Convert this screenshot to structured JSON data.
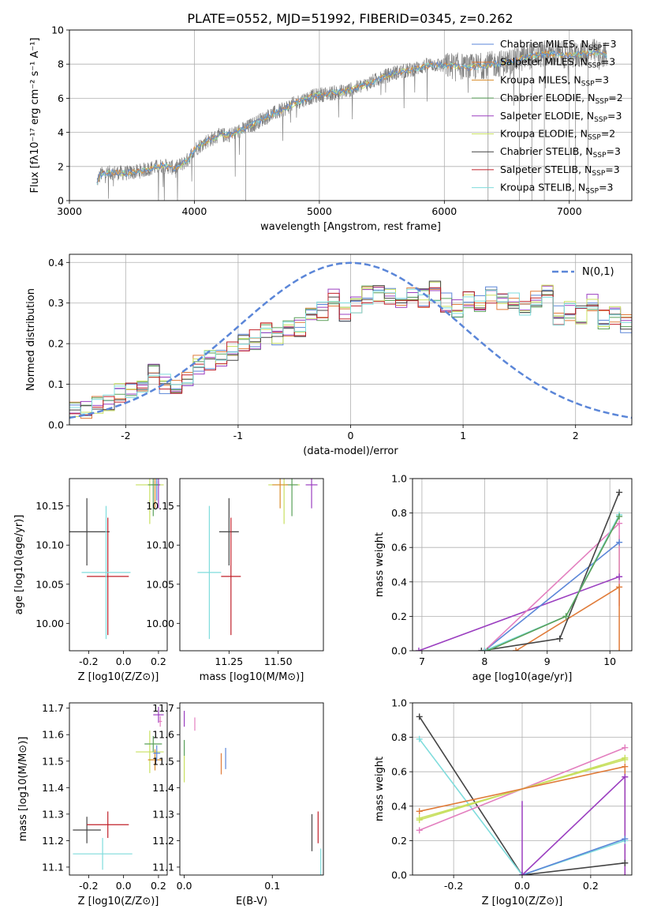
{
  "figure_title": "PLATE=0552, MJD=51992, FIBERID=0345, z=0.262",
  "colors": {
    "chabrier_miles": "#5b86d8",
    "salpeter_miles": "#e07b39",
    "kroupa_miles": "#d98c2a",
    "chabrier_elodie": "#5aa05a",
    "salpeter_elodie": "#9b3fc0",
    "kroupa_elodie": "#c8e060",
    "chabrier_stelib": "#444444",
    "salpeter_stelib": "#c0202a",
    "kroupa_stelib": "#7fdcdc",
    "data_gray": "#808080",
    "pink": "#e37fbf",
    "normal_curve": "#5b86d8"
  },
  "chart_data": [
    {
      "id": "spectrum",
      "type": "line",
      "xlabel": "wavelength [Angstrom, rest frame]",
      "ylabel": "Flux [fλ10⁻¹⁷ erg cm⁻² s⁻¹ A⁻¹]",
      "xlim": [
        3000,
        7500
      ],
      "ylim": [
        0,
        10
      ],
      "xticks": [
        3000,
        4000,
        5000,
        6000,
        7000
      ],
      "yticks": [
        0,
        2,
        4,
        6,
        8,
        10
      ],
      "grid": true,
      "legend_position": "right",
      "legend": [
        "Chabrier MILES, N_SSP=3",
        "Salpeter MILES, N_SSP=3",
        "Kroupa MILES, N_SSP=3",
        "Chabrier ELODIE, N_SSP=2",
        "Salpeter ELODIE, N_SSP=3",
        "Kroupa ELODIE, N_SSP=2",
        "Chabrier STELIB, N_SSP=3",
        "Salpeter STELIB, N_SSP=3",
        "Kroupa STELIB, N_SSP=3"
      ],
      "continuum_nodes": [
        [
          3220,
          1.1
        ],
        [
          3250,
          1.55
        ],
        [
          3350,
          1.65
        ],
        [
          3450,
          1.6
        ],
        [
          3550,
          1.7
        ],
        [
          3650,
          1.9
        ],
        [
          3750,
          2.05
        ],
        [
          3850,
          1.9
        ],
        [
          3950,
          2.4
        ],
        [
          4000,
          3.0
        ],
        [
          4100,
          3.5
        ],
        [
          4200,
          3.8
        ],
        [
          4300,
          3.9
        ],
        [
          4400,
          4.2
        ],
        [
          4500,
          4.6
        ],
        [
          4600,
          5.0
        ],
        [
          4700,
          5.3
        ],
        [
          4800,
          5.7
        ],
        [
          4900,
          6.0
        ],
        [
          5000,
          6.2
        ],
        [
          5100,
          6.3
        ],
        [
          5200,
          6.4
        ],
        [
          5300,
          6.6
        ],
        [
          5400,
          6.9
        ],
        [
          5500,
          7.2
        ],
        [
          5600,
          7.5
        ],
        [
          5700,
          7.6
        ],
        [
          5800,
          7.8
        ],
        [
          5900,
          8.0
        ],
        [
          6000,
          7.9
        ],
        [
          6100,
          7.9
        ],
        [
          6200,
          7.8
        ],
        [
          6300,
          7.9
        ],
        [
          6400,
          8.0
        ],
        [
          6500,
          8.1
        ],
        [
          6600,
          8.3
        ],
        [
          6700,
          8.5
        ],
        [
          6800,
          8.6
        ],
        [
          6900,
          8.6
        ],
        [
          7000,
          8.5
        ],
        [
          7100,
          8.6
        ],
        [
          7200,
          8.7
        ],
        [
          7300,
          8.5
        ]
      ]
    },
    {
      "id": "residuals",
      "type": "step",
      "xlabel": "(data-model)/error",
      "ylabel": "Normed distribution",
      "xlim": [
        -2.5,
        2.5
      ],
      "ylim": [
        0,
        0.42
      ],
      "xticks": [
        -2,
        -1,
        0,
        1,
        2
      ],
      "yticks": [
        0.0,
        0.1,
        0.2,
        0.3,
        0.4
      ],
      "grid": true,
      "legend_position": "top-right",
      "legend": [
        "N(0,1)"
      ],
      "bin_width": 0.1,
      "bin_start": -2.5,
      "base_hist": [
        0.04,
        0.04,
        0.05,
        0.06,
        0.08,
        0.08,
        0.09,
        0.13,
        0.1,
        0.1,
        0.12,
        0.15,
        0.16,
        0.16,
        0.18,
        0.2,
        0.21,
        0.24,
        0.22,
        0.24,
        0.24,
        0.27,
        0.28,
        0.31,
        0.28,
        0.29,
        0.32,
        0.32,
        0.32,
        0.3,
        0.33,
        0.31,
        0.33,
        0.3,
        0.29,
        0.31,
        0.3,
        0.32,
        0.3,
        0.3,
        0.29,
        0.31,
        0.32,
        0.27,
        0.28,
        0.27,
        0.3,
        0.26,
        0.27,
        0.25,
        0.24,
        0.21,
        0.21,
        0.2,
        0.18,
        0.18,
        0.16,
        0.14,
        0.15,
        0.14,
        0.15,
        0.14,
        0.12,
        0.12,
        0.1,
        0.1,
        0.1,
        0.09,
        0.07,
        0.07
      ]
    },
    {
      "id": "age_vs_Z",
      "type": "errorbar",
      "xlabel": "Z [log10(Z/Z⊙)]",
      "ylabel": "age  [log10(age/yr)]",
      "xlim": [
        -0.31,
        0.25
      ],
      "ylim": [
        9.965,
        10.185
      ],
      "xticks": [
        -0.2,
        0.0,
        0.2
      ],
      "yticks": [
        10.0,
        10.05,
        10.1,
        10.15
      ],
      "points": [
        {
          "series": "Chabrier STELIB",
          "color": "chabrier_stelib",
          "x": -0.21,
          "xerr": 0.13,
          "y": 10.117,
          "yerr": 0.043
        },
        {
          "series": "Salpeter STELIB",
          "color": "salpeter_stelib",
          "x": -0.09,
          "xerr": 0.12,
          "y": 10.06,
          "yerr": 0.075
        },
        {
          "series": "Kroupa STELIB",
          "color": "kroupa_stelib",
          "x": -0.1,
          "xerr": 0.14,
          "y": 10.065,
          "yerr": 0.085
        },
        {
          "series": "Kroupa ELODIE",
          "color": "kroupa_elodie",
          "x": 0.15,
          "xerr": 0.08,
          "y": 10.177,
          "yerr": 0.05
        },
        {
          "series": "Salpeter ELODIE",
          "color": "salpeter_elodie",
          "x": 0.2,
          "xerr": 0.01,
          "y": 10.177,
          "yerr": 0.03
        },
        {
          "series": "Kroupa MILES",
          "color": "kroupa_miles",
          "x": 0.18,
          "xerr": 0.02,
          "y": 10.177,
          "yerr": 0.03
        },
        {
          "series": "Chabrier MILES",
          "color": "chabrier_miles",
          "x": 0.19,
          "xerr": 0.01,
          "y": 10.177,
          "yerr": 0.02
        },
        {
          "series": "Chabrier ELODIE",
          "color": "chabrier_elodie",
          "x": 0.17,
          "xerr": 0.03,
          "y": 10.177,
          "yerr": 0.04
        }
      ]
    },
    {
      "id": "age_vs_mass",
      "type": "errorbar",
      "xlabel": "mass [log10(M/M⊙)]",
      "ylabel": "",
      "xlim": [
        11.0,
        11.73
      ],
      "ylim": [
        9.965,
        10.185
      ],
      "xticks": [
        11.25,
        11.5
      ],
      "yticks": [
        10.0,
        10.05,
        10.1,
        10.15
      ],
      "points": [
        {
          "series": "Chabrier STELIB",
          "color": "chabrier_stelib",
          "x": 11.25,
          "xerr": 0.05,
          "y": 10.117,
          "yerr": 0.043
        },
        {
          "series": "Salpeter STELIB",
          "color": "salpeter_stelib",
          "x": 11.26,
          "xerr": 0.05,
          "y": 10.06,
          "yerr": 0.075
        },
        {
          "series": "Kroupa STELIB",
          "color": "kroupa_stelib",
          "x": 11.15,
          "xerr": 0.06,
          "y": 10.065,
          "yerr": 0.085
        },
        {
          "series": "Kroupa ELODIE",
          "color": "kroupa_elodie",
          "x": 11.53,
          "xerr": 0.08,
          "y": 10.177,
          "yerr": 0.05
        },
        {
          "series": "Chabrier ELODIE",
          "color": "chabrier_elodie",
          "x": 11.57,
          "xerr": 0.03,
          "y": 10.177,
          "yerr": 0.04
        },
        {
          "series": "Salpeter ELODIE",
          "color": "salpeter_elodie",
          "x": 11.67,
          "xerr": 0.03,
          "y": 10.177,
          "yerr": 0.03
        },
        {
          "series": "Kroupa MILES",
          "color": "kroupa_miles",
          "x": 11.51,
          "xerr": 0.04,
          "y": 10.177,
          "yerr": 0.03
        }
      ]
    },
    {
      "id": "weight_vs_age",
      "type": "line",
      "xlabel": "age  [log10(age/yr)]",
      "ylabel": "mass weight",
      "xlim": [
        6.85,
        10.35
      ],
      "ylim": [
        0,
        1.0
      ],
      "xticks": [
        7,
        8,
        9,
        10
      ],
      "yticks": [
        0.0,
        0.2,
        0.4,
        0.6,
        0.8,
        1.0
      ],
      "grid": true,
      "series": [
        {
          "name": "Salpeter ELODIE",
          "color": "salpeter_elodie",
          "x": [
            6.95,
            10.15
          ],
          "y": [
            0.0,
            0.43
          ]
        },
        {
          "name": "Chabrier MILES",
          "color": "chabrier_miles",
          "x": [
            8.0,
            10.15
          ],
          "y": [
            0.0,
            0.63
          ]
        },
        {
          "name": "Salpeter MILES",
          "color": "salpeter_miles",
          "x": [
            8.5,
            10.15
          ],
          "y": [
            0.0,
            0.37
          ]
        },
        {
          "name": "Pink",
          "color": "pink",
          "x": [
            8.0,
            10.15
          ],
          "y": [
            0.0,
            0.74
          ]
        },
        {
          "name": "Chabrier STELIB",
          "color": "chabrier_stelib",
          "x": [
            7.95,
            9.2,
            10.15
          ],
          "y": [
            0.0,
            0.07,
            0.92
          ]
        },
        {
          "name": "Kroupa STELIB",
          "color": "kroupa_stelib",
          "x": [
            8.0,
            9.3,
            10.15
          ],
          "y": [
            0.0,
            0.2,
            0.79
          ]
        },
        {
          "name": "Chabrier ELODIE",
          "color": "chabrier_elodie",
          "x": [
            8.05,
            9.3,
            10.15
          ],
          "y": [
            0.0,
            0.2,
            0.78
          ]
        }
      ],
      "vbars": [
        {
          "color": "kroupa_elodie",
          "x": 10.15,
          "y0": 0.33,
          "y1": 0.67
        },
        {
          "color": "pink",
          "x": 10.15,
          "y0": 0.26,
          "y1": 0.74
        },
        {
          "color": "salpeter_miles",
          "x": 10.15,
          "y0": 0.0,
          "y1": 0.37
        }
      ]
    },
    {
      "id": "mass_vs_Z",
      "type": "errorbar",
      "xlabel": "Z [log10(Z/Z⊙)]",
      "ylabel": "mass [log10(M/M⊙)]",
      "xlim": [
        -0.31,
        0.25
      ],
      "ylim": [
        11.07,
        11.72
      ],
      "xticks": [
        -0.2,
        0.0,
        0.2
      ],
      "yticks": [
        11.1,
        11.2,
        11.3,
        11.4,
        11.5,
        11.6,
        11.7
      ],
      "points": [
        {
          "series": "Chabrier STELIB",
          "color": "chabrier_stelib",
          "x": -0.21,
          "xerr": 0.08,
          "y": 11.24,
          "yerr": 0.05
        },
        {
          "series": "Salpeter STELIB",
          "color": "salpeter_stelib",
          "x": -0.09,
          "xerr": 0.12,
          "y": 11.26,
          "yerr": 0.05
        },
        {
          "series": "Kroupa STELIB",
          "color": "kroupa_stelib",
          "x": -0.12,
          "xerr": 0.17,
          "y": 11.15,
          "yerr": 0.06
        },
        {
          "series": "Kroupa ELODIE",
          "color": "kroupa_elodie",
          "x": 0.15,
          "xerr": 0.08,
          "y": 11.535,
          "yerr": 0.08
        },
        {
          "series": "Chabrier ELODIE",
          "color": "chabrier_elodie",
          "x": 0.17,
          "xerr": 0.05,
          "y": 11.565,
          "yerr": 0.03
        },
        {
          "series": "Kroupa MILES",
          "color": "kroupa_miles",
          "x": 0.18,
          "xerr": 0.04,
          "y": 11.505,
          "yerr": 0.04
        },
        {
          "series": "Chabrier MILES",
          "color": "chabrier_miles",
          "x": 0.19,
          "xerr": 0.02,
          "y": 11.53,
          "yerr": 0.03
        },
        {
          "series": "Salpeter ELODIE",
          "color": "salpeter_elodie",
          "x": 0.2,
          "xerr": 0.03,
          "y": 11.675,
          "yerr": 0.03
        },
        {
          "series": "Pink",
          "color": "pink",
          "x": 0.21,
          "xerr": 0.01,
          "y": 11.65,
          "yerr": 0.02
        }
      ]
    },
    {
      "id": "mass_vs_ebv",
      "type": "errorbar",
      "xlabel": "E(B-V)",
      "ylabel": "",
      "xlim": [
        -0.005,
        0.158
      ],
      "ylim": [
        11.07,
        11.72
      ],
      "xticks": [
        0.0,
        0.1
      ],
      "yticks": [
        11.1,
        11.2,
        11.3,
        11.4,
        11.5,
        11.6,
        11.7
      ],
      "points": [
        {
          "series": "Salpeter ELODIE",
          "color": "salpeter_elodie",
          "x": 0.0,
          "xerr": 0,
          "y": 11.66,
          "yerr": 0.03
        },
        {
          "series": "Chabrier ELODIE",
          "color": "chabrier_elodie",
          "x": 0.0,
          "xerr": 0,
          "y": 11.55,
          "yerr": 0.03
        },
        {
          "series": "Kroupa ELODIE",
          "color": "kroupa_elodie",
          "x": 0.0,
          "xerr": 0,
          "y": 11.47,
          "yerr": 0.05
        },
        {
          "series": "Pink",
          "color": "pink",
          "x": 0.012,
          "xerr": 0,
          "y": 11.64,
          "yerr": 0.025
        },
        {
          "series": "Salpeter MILES",
          "color": "salpeter_miles",
          "x": 0.042,
          "xerr": 0,
          "y": 11.49,
          "yerr": 0.04
        },
        {
          "series": "Chabrier MILES",
          "color": "chabrier_miles",
          "x": 0.047,
          "xerr": 0,
          "y": 11.51,
          "yerr": 0.04
        },
        {
          "series": "Chabrier STELIB",
          "color": "chabrier_stelib",
          "x": 0.145,
          "xerr": 0,
          "y": 11.23,
          "yerr": 0.07
        },
        {
          "series": "Salpeter STELIB",
          "color": "salpeter_stelib",
          "x": 0.152,
          "xerr": 0,
          "y": 11.25,
          "yerr": 0.06
        },
        {
          "series": "Kroupa STELIB",
          "color": "kroupa_stelib",
          "x": 0.155,
          "xerr": 0,
          "y": 11.12,
          "yerr": 0.05
        }
      ]
    },
    {
      "id": "weight_vs_Z",
      "type": "line",
      "xlabel": "Z [log10(Z/Z⊙)]",
      "ylabel": "mass weight",
      "xlim": [
        -0.32,
        0.32
      ],
      "ylim": [
        0,
        1.0
      ],
      "xticks": [
        -0.2,
        0.0,
        0.2
      ],
      "yticks": [
        0.0,
        0.2,
        0.4,
        0.6,
        0.8,
        1.0
      ],
      "grid": true,
      "series": [
        {
          "name": "Chabrier STELIB",
          "color": "chabrier_stelib",
          "x": [
            -0.3,
            0.0,
            0.3
          ],
          "y": [
            0.92,
            0.0,
            0.07
          ]
        },
        {
          "name": "Kroupa STELIB",
          "color": "kroupa_stelib",
          "x": [
            -0.3,
            0.0,
            0.3
          ],
          "y": [
            0.79,
            0.0,
            0.2
          ]
        },
        {
          "name": "Chabrier MILES",
          "color": "chabrier_miles",
          "x": [
            0.0,
            0.3
          ],
          "y": [
            0.0,
            0.21
          ]
        },
        {
          "name": "Pink",
          "color": "pink",
          "x": [
            -0.3,
            0.3
          ],
          "y": [
            0.26,
            0.74
          ]
        },
        {
          "name": "Kroupa ELODIE",
          "color": "kroupa_elodie",
          "x": [
            -0.3,
            0.3
          ],
          "y": [
            0.33,
            0.67
          ]
        },
        {
          "name": "Kroupa ELODIE 2",
          "color": "kroupa_elodie",
          "x": [
            -0.3,
            0.3
          ],
          "y": [
            0.32,
            0.68
          ]
        },
        {
          "name": "Salpeter MILES",
          "color": "salpeter_miles",
          "x": [
            -0.3,
            0.3
          ],
          "y": [
            0.37,
            0.63
          ]
        },
        {
          "name": "Salpeter ELODIE",
          "color": "salpeter_elodie",
          "x": [
            0.0,
            0.3
          ],
          "y": [
            0.0,
            0.57
          ]
        }
      ],
      "vbars": [
        {
          "color": "salpeter_elodie",
          "x": 0.0,
          "y0": 0.0,
          "y1": 0.43
        },
        {
          "color": "salpeter_miles",
          "x": 0.3,
          "y0": 0.0,
          "y1": 0.63
        },
        {
          "color": "salpeter_elodie",
          "x": 0.3,
          "y0": 0.0,
          "y1": 0.57
        }
      ]
    }
  ]
}
